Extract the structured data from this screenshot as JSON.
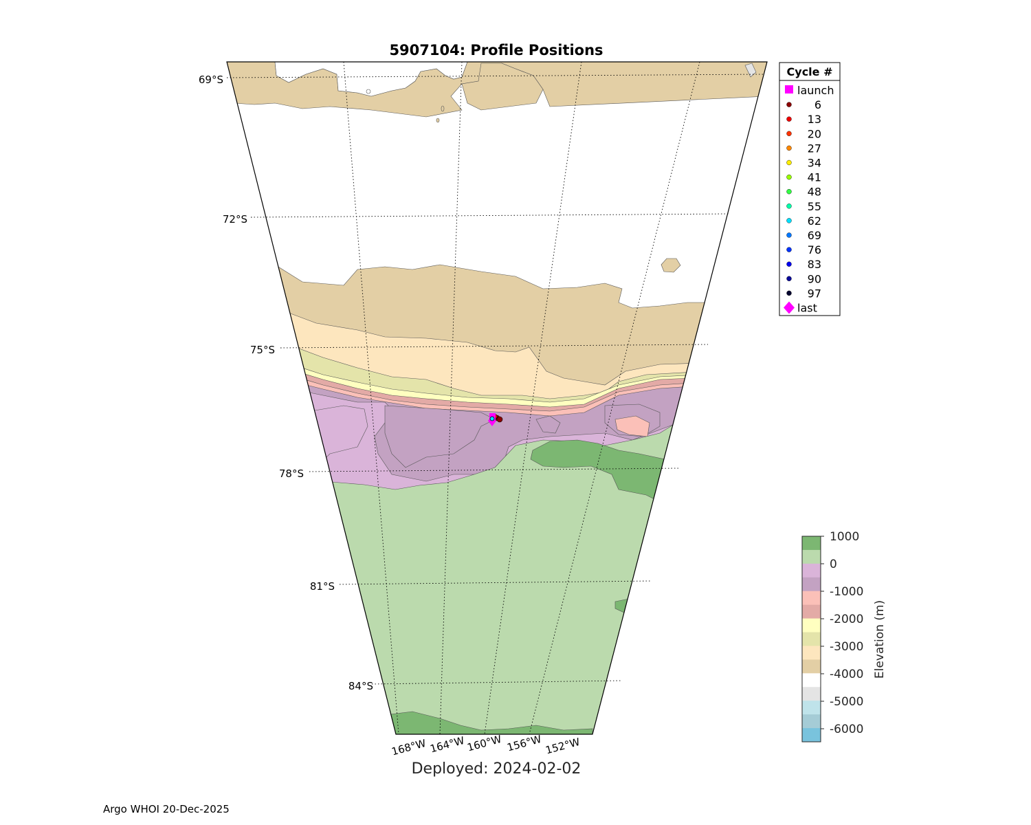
{
  "title": "5907104: Profile Positions",
  "deployed": "Deployed: 2024-02-02",
  "footer": "Argo WHOI 20-Dec-2025",
  "map": {
    "projection": "polar wedge (south polar)",
    "lat_labels": [
      "69°S",
      "72°S",
      "75°S",
      "78°S",
      "81°S",
      "84°S"
    ],
    "lon_labels": [
      "168°W",
      "164°W",
      "160°W",
      "156°W",
      "152°W"
    ],
    "grid": "dotted"
  },
  "legend": {
    "title": "Cycle #",
    "entries": [
      {
        "label": "launch",
        "color": "#ff00ff",
        "marker": "square"
      },
      {
        "label": "6",
        "color": "#8b0000",
        "marker": "dot"
      },
      {
        "label": "13",
        "color": "#ee0000",
        "marker": "dot"
      },
      {
        "label": "20",
        "color": "#ff3300",
        "marker": "dot"
      },
      {
        "label": "27",
        "color": "#ff8800",
        "marker": "dot"
      },
      {
        "label": "34",
        "color": "#ffee00",
        "marker": "dot"
      },
      {
        "label": "41",
        "color": "#99ff00",
        "marker": "dot"
      },
      {
        "label": "48",
        "color": "#33ff44",
        "marker": "dot"
      },
      {
        "label": "55",
        "color": "#00ffaa",
        "marker": "dot"
      },
      {
        "label": "62",
        "color": "#00e0ff",
        "marker": "dot"
      },
      {
        "label": "69",
        "color": "#0077ff",
        "marker": "dot"
      },
      {
        "label": "76",
        "color": "#0033ff",
        "marker": "dot"
      },
      {
        "label": "83",
        "color": "#0000ee",
        "marker": "dot"
      },
      {
        "label": "90",
        "color": "#0a0a99",
        "marker": "dot"
      },
      {
        "label": "97",
        "color": "#050530",
        "marker": "dot"
      },
      {
        "label": "last",
        "color": "#ff00ff",
        "marker": "diamond"
      }
    ]
  },
  "colorbar": {
    "label": "Elevation (m)",
    "tick_labels": [
      "1000",
      "0",
      "-1000",
      "-2000",
      "-3000",
      "-4000",
      "-5000",
      "-6000"
    ],
    "colors": [
      "#7cb772",
      "#bbdaad",
      "#dab4d9",
      "#c3a2c2",
      "#fbc0b8",
      "#e3aaa6",
      "#ffffc0",
      "#e4e4aa",
      "#fde6be",
      "#e3cfa5",
      "#ffffff",
      "#e4e4e4",
      "#bfe3ea",
      "#a5ccd6",
      "#79c3dd"
    ]
  }
}
